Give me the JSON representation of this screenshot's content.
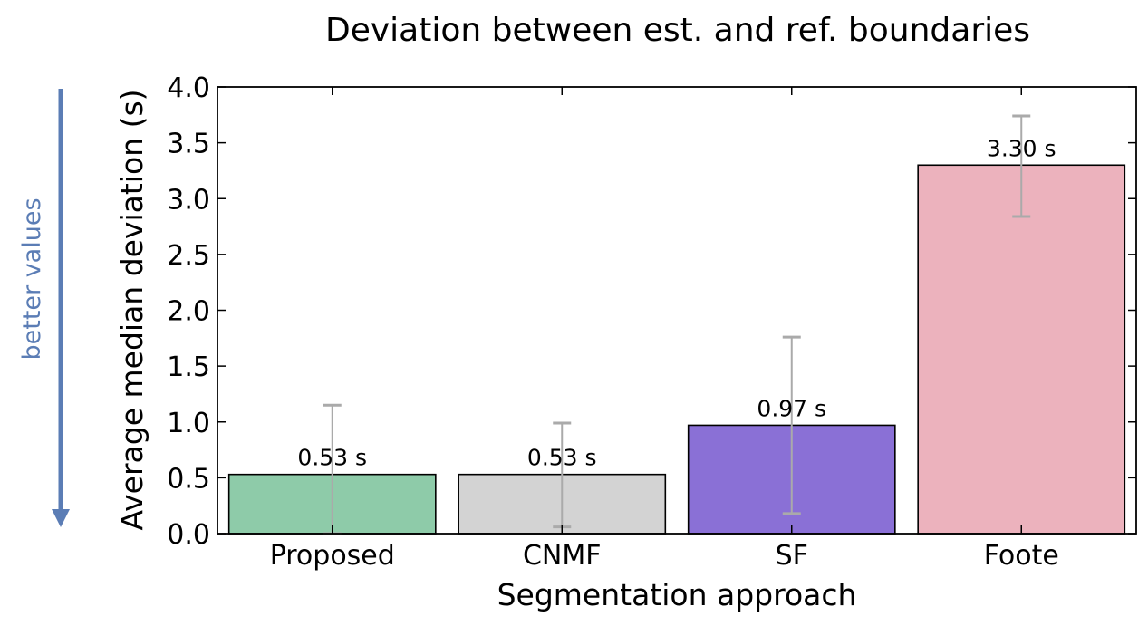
{
  "chart_data": {
    "type": "bar",
    "title": "Deviation between est. and ref. boundaries",
    "xlabel": "Segmentation approach",
    "ylabel": "Average median deviation (s)",
    "ylim": [
      0,
      4.0
    ],
    "yticks": [
      "0.0",
      "0.5",
      "1.0",
      "1.5",
      "2.0",
      "2.5",
      "3.0",
      "3.5",
      "4.0"
    ],
    "categories": [
      "Proposed",
      "CNMF",
      "SF",
      "Foote"
    ],
    "values": [
      0.53,
      0.53,
      0.97,
      3.3
    ],
    "error_low": [
      0.0,
      0.06,
      0.18,
      2.84
    ],
    "error_high": [
      1.15,
      0.99,
      1.76,
      3.74
    ],
    "data_labels": [
      "0.53 s",
      "0.53 s",
      "0.97 s",
      "3.30 s"
    ],
    "colors": [
      "#8ecba9",
      "#d3d3d3",
      "#8a70d6",
      "#ecb2bd"
    ],
    "error_color": "#aaaaaa",
    "grid": false,
    "annotation": {
      "text": "better values",
      "direction": "down",
      "color": "#5b7db5"
    }
  }
}
